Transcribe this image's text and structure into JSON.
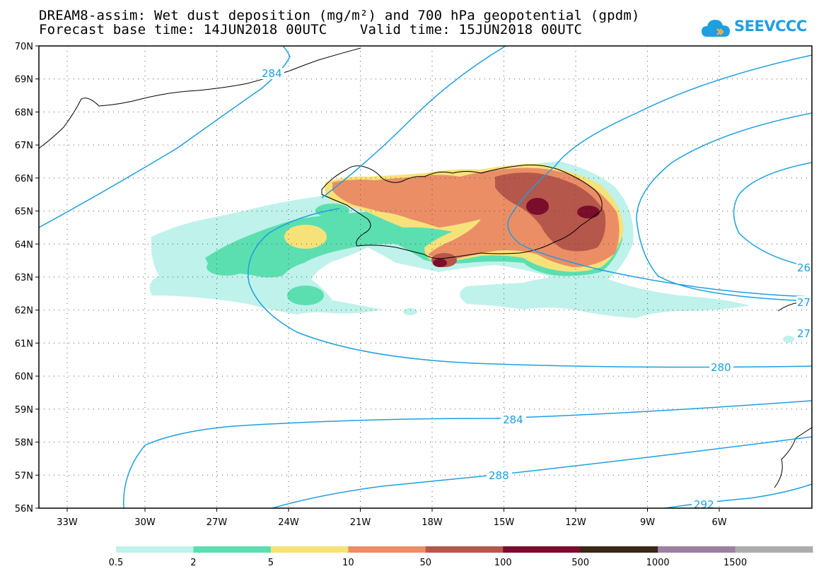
{
  "title": {
    "line1": "DREAM8-assim: Wet dust deposition (mg/m²) and 700 hPa geopotential (gpdm)",
    "line2": "Forecast base time: 14JUN2018 00UTC    Valid time: 15JUN2018 00UTC"
  },
  "logo": {
    "text": "SEEVCCC",
    "icon": "cloud-icon",
    "color": "#1e9fe0"
  },
  "map": {
    "lat_labels": [
      "70N",
      "69N",
      "68N",
      "67N",
      "66N",
      "65N",
      "64N",
      "63N",
      "62N",
      "61N",
      "60N",
      "59N",
      "58N",
      "57N",
      "56N"
    ],
    "lon_labels": [
      "33W",
      "30W",
      "27W",
      "24W",
      "21W",
      "18W",
      "15W",
      "12W",
      "9W",
      "6W"
    ],
    "contour_color": "#1e9fe0",
    "contour_labels": [
      "284",
      "280",
      "284",
      "288",
      "292",
      "26",
      "27",
      "27"
    ]
  },
  "legend": {
    "labels": [
      "0.5",
      "2",
      "5",
      "10",
      "50",
      "100",
      "500",
      "1000",
      "1500"
    ],
    "colors": [
      "#bff2ea",
      "#5cdfb0",
      "#f7e27a",
      "#eb8e66",
      "#b5574a",
      "#7a0d2c",
      "#3a2815",
      "#9c7fa2",
      "#acacac"
    ]
  }
}
